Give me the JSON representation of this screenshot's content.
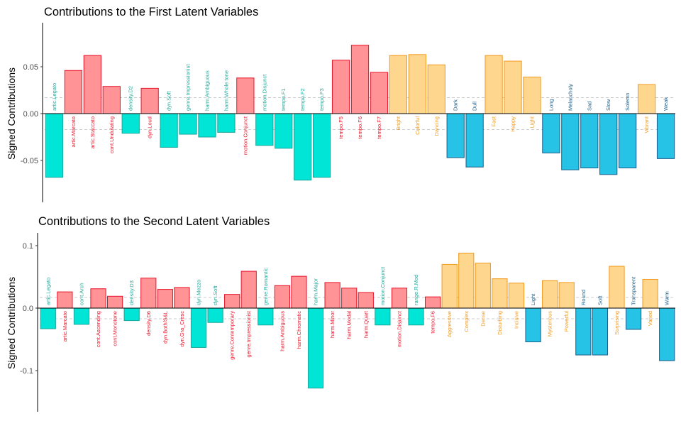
{
  "colors": {
    "teal_fill": "#00E5D6",
    "teal_stroke": "#1AA69A",
    "teal_text": "#20A99B",
    "red_fill": "#FF9396",
    "red_stroke": "#E8152A",
    "red_text": "#E8152A",
    "orange_fill": "#FFD68E",
    "orange_stroke": "#F29A1E",
    "orange_text": "#F29A1E",
    "blue_fill": "#26C3E6",
    "blue_stroke": "#1B5E8A",
    "blue_text": "#1B5E8A"
  },
  "chart_data": [
    {
      "type": "bar",
      "title": "Contributions to the First Latent Variables",
      "ylabel": "Signed Contributions",
      "xlabel": "",
      "ylim": [
        -0.092,
        0.095
      ],
      "yticks": [
        "-0.05",
        "0.00",
        "0.05"
      ],
      "threshold": 0.017,
      "grid": false,
      "categories": [
        "artic.Legato",
        "artic.Marcato",
        "artic.Staccato",
        "cont.Undulating",
        "density.D2",
        "dyn.Loud",
        "dyn.Soft",
        "genre.Impressionist",
        "harm.Ambiguous",
        "harm.Whole tone",
        "motion.Conjunct",
        "motion.Disjunct",
        "tempo.F1",
        "tempo.F2",
        "tempo.F3",
        "tempo.F5",
        "tempo.F6",
        "tempo.F7",
        "Bright",
        "Colorful",
        "Dancing",
        "Dark",
        "Dull",
        "Fast",
        "Happy",
        "Light",
        "Long",
        "Melancholy",
        "Sad",
        "Slow",
        "Solemn",
        "Vibrant",
        "Weak"
      ],
      "values": [
        -0.068,
        0.046,
        0.062,
        0.029,
        -0.021,
        0.027,
        -0.036,
        -0.022,
        -0.025,
        -0.02,
        0.038,
        -0.034,
        -0.037,
        -0.071,
        -0.068,
        0.057,
        0.073,
        0.044,
        0.062,
        0.063,
        0.052,
        -0.047,
        -0.057,
        0.062,
        0.056,
        0.039,
        -0.042,
        -0.06,
        -0.058,
        -0.065,
        -0.058,
        0.031,
        -0.048
      ],
      "groups": [
        "teal",
        "red",
        "red",
        "red",
        "teal",
        "red",
        "teal",
        "teal",
        "teal",
        "teal",
        "red",
        "teal",
        "teal",
        "teal",
        "teal",
        "red",
        "red",
        "red",
        "orange",
        "orange",
        "orange",
        "blue",
        "blue",
        "orange",
        "orange",
        "orange",
        "blue",
        "blue",
        "blue",
        "blue",
        "blue",
        "orange",
        "blue"
      ]
    },
    {
      "type": "bar",
      "title": "Contributions to the Second Latent Variables",
      "ylabel": "Signed Contributions",
      "xlabel": "",
      "ylim": [
        -0.165,
        0.12
      ],
      "yticks": [
        "-0.1",
        "0.0",
        "0.1"
      ],
      "threshold": 0.017,
      "grid": false,
      "categories": [
        "artic.Legato",
        "artic.Marcato",
        "cont.Arch",
        "cont.Ascending",
        "cont.Monotone",
        "density.D3",
        "density.D6",
        "dyn.Both/S&L",
        "dyn.Gra_Cresc",
        "dyn.Mezzo",
        "dyn.Soft",
        "genre.Contemporary",
        "genre.Impressionist",
        "genre.Romantic",
        "harm.Ambiguous",
        "harm.Chromatic",
        "harm.Major",
        "harm.Minor",
        "harm.Modal",
        "harm.Quart",
        "motion.Conjunct",
        "motion.Disjunct",
        "range.R.Mod",
        "tempo.F6",
        "Aggressive",
        "Complex",
        "Dense",
        "Disturbing",
        "Incisive",
        "Light",
        "Mysterious",
        "Powerful",
        "Round",
        "Soft",
        "Surprising",
        "Transparent",
        "Varied",
        "Warm"
      ],
      "values": [
        -0.033,
        0.026,
        -0.026,
        0.031,
        0.019,
        -0.02,
        0.048,
        0.03,
        0.033,
        -0.063,
        -0.023,
        0.022,
        0.059,
        -0.027,
        0.036,
        0.051,
        -0.128,
        0.041,
        0.032,
        0.025,
        -0.027,
        0.032,
        -0.027,
        0.018,
        0.07,
        0.088,
        0.072,
        0.047,
        0.04,
        -0.054,
        0.044,
        0.041,
        -0.075,
        -0.075,
        0.067,
        -0.034,
        0.046,
        -0.084
      ],
      "groups": [
        "teal",
        "red",
        "teal",
        "red",
        "red",
        "teal",
        "red",
        "red",
        "red",
        "teal",
        "teal",
        "red",
        "red",
        "teal",
        "red",
        "red",
        "teal",
        "red",
        "red",
        "red",
        "teal",
        "red",
        "teal",
        "red",
        "orange",
        "orange",
        "orange",
        "orange",
        "orange",
        "blue",
        "orange",
        "orange",
        "blue",
        "blue",
        "orange",
        "blue",
        "orange",
        "blue"
      ]
    }
  ]
}
